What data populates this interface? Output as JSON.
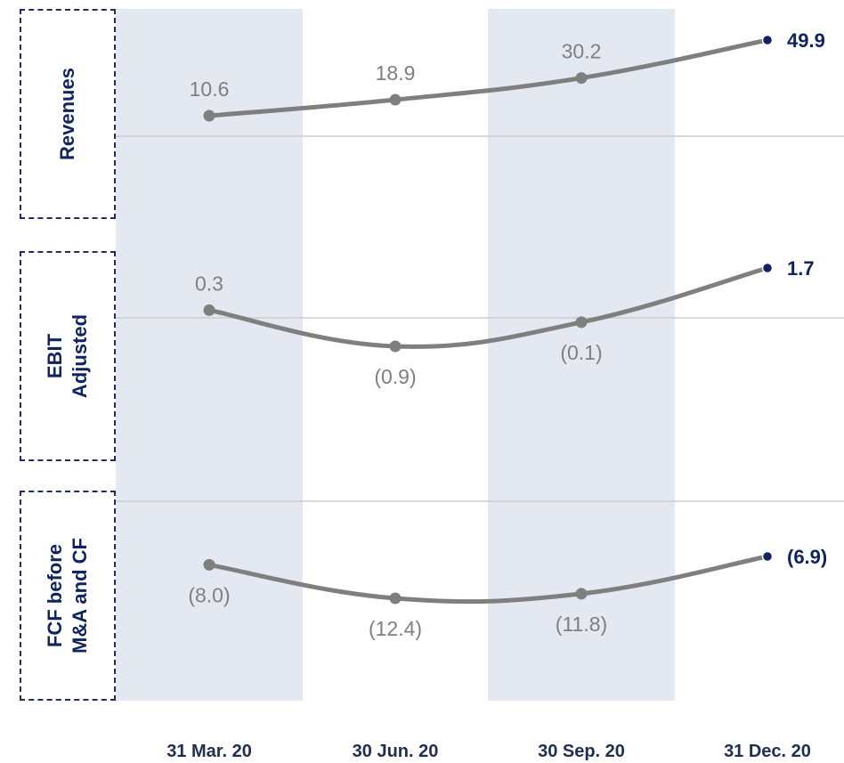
{
  "chart_data": {
    "type": "line",
    "categories": [
      "31 Mar. 20",
      "30 Jun. 20",
      "30 Sep. 20",
      "31 Dec. 20"
    ],
    "panels": [
      {
        "label_lines": [
          "Revenues"
        ],
        "values": [
          10.6,
          18.9,
          30.2,
          49.9
        ],
        "value_labels": [
          "10.6",
          "18.9",
          "30.2",
          "49.9"
        ]
      },
      {
        "label_lines": [
          "EBIT",
          "Adjusted"
        ],
        "values": [
          0.3,
          -0.9,
          -0.1,
          1.7
        ],
        "value_labels": [
          "0.3",
          "(0.9)",
          "(0.1)",
          "1.7"
        ]
      },
      {
        "label_lines": [
          "FCF before",
          "M&A and CF"
        ],
        "values": [
          -8.0,
          -12.4,
          -11.8,
          -6.9
        ],
        "value_labels": [
          "(8.0)",
          "(12.4)",
          "(11.8)",
          "(6.9)"
        ]
      }
    ],
    "highlighted_columns": [
      "31 Mar. 20",
      "30 Sep. 20"
    ]
  },
  "colors": {
    "line": "#7f7f7f",
    "marker": "#7f7f7f",
    "last_marker": "#0f2560",
    "highlight_band": "#e4e9f1",
    "value_label": "#7f7f7f",
    "last_value_label": "#0f2560"
  }
}
